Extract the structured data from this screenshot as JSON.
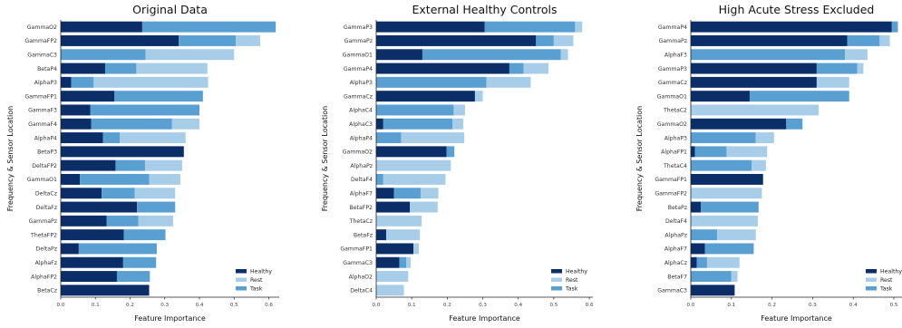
{
  "colors": {
    "Healthy": "#0b2e68",
    "Rest": "#a8cde8",
    "Task": "#5a9fd2"
  },
  "chart_data": [
    {
      "type": "bar",
      "orientation": "horizontal",
      "stacked": true,
      "title": "Original Data",
      "xlabel": "Feature Importance",
      "ylabel": "Frequency & Sensor Location",
      "xlim": [
        0,
        0.63
      ],
      "xticks": [
        "0.0",
        "0.1",
        "0.2",
        "0.3",
        "0.4",
        "0.5",
        "0.6"
      ],
      "xtick_values": [
        0,
        0.1,
        0.2,
        0.3,
        0.4,
        0.5,
        0.6
      ],
      "legend": {
        "entries": [
          "Healthy",
          "Rest",
          "Task"
        ],
        "placement": "lower-right"
      },
      "categories": [
        "GammaO2",
        "GammaFP2",
        "GammaC3",
        "BetaP4",
        "AlphaP3",
        "GammaFP1",
        "GammaF3",
        "GammaF4",
        "AlphaP4",
        "BetaP3",
        "DeltaFP2",
        "GammaO1",
        "DeltaCz",
        "DeltaFz",
        "GammaPz",
        "ThetaFP2",
        "DeltaPz",
        "AlphaFz",
        "AlphaFP2",
        "BetaCz"
      ],
      "segments": [
        [
          [
            "Healthy",
            0.235
          ],
          [
            "Task",
            0.385
          ]
        ],
        [
          [
            "Healthy",
            0.34
          ],
          [
            "Task",
            0.165
          ],
          [
            "Rest",
            0.07
          ]
        ],
        [
          [
            "Task",
            0.245
          ],
          [
            "Rest",
            0.255
          ]
        ],
        [
          [
            "Healthy",
            0.128
          ],
          [
            "Task",
            0.09
          ],
          [
            "Rest",
            0.205
          ]
        ],
        [
          [
            "Healthy",
            0.03
          ],
          [
            "Task",
            0.065
          ],
          [
            "Rest",
            0.33
          ]
        ],
        [
          [
            "Healthy",
            0.155
          ],
          [
            "Task",
            0.255
          ]
        ],
        [
          [
            "Healthy",
            0.085
          ],
          [
            "Task",
            0.315
          ]
        ],
        [
          [
            "Healthy",
            0.088
          ],
          [
            "Task",
            0.233
          ],
          [
            "Rest",
            0.079
          ]
        ],
        [
          [
            "Healthy",
            0.122
          ],
          [
            "Task",
            0.048
          ],
          [
            "Rest",
            0.19
          ]
        ],
        [
          [
            "Healthy",
            0.355
          ]
        ],
        [
          [
            "Healthy",
            0.158
          ],
          [
            "Task",
            0.085
          ],
          [
            "Rest",
            0.107
          ]
        ],
        [
          [
            "Healthy",
            0.055
          ],
          [
            "Task",
            0.2
          ],
          [
            "Rest",
            0.09
          ]
        ],
        [
          [
            "Healthy",
            0.118
          ],
          [
            "Task",
            0.095
          ],
          [
            "Rest",
            0.117
          ]
        ],
        [
          [
            "Healthy",
            0.22
          ],
          [
            "Task",
            0.11
          ]
        ],
        [
          [
            "Healthy",
            0.132
          ],
          [
            "Task",
            0.092
          ],
          [
            "Rest",
            0.1
          ]
        ],
        [
          [
            "Healthy",
            0.182
          ],
          [
            "Task",
            0.12
          ]
        ],
        [
          [
            "Healthy",
            0.052
          ],
          [
            "Task",
            0.225
          ]
        ],
        [
          [
            "Healthy",
            0.18
          ],
          [
            "Task",
            0.095
          ]
        ],
        [
          [
            "Healthy",
            0.162
          ],
          [
            "Task",
            0.095
          ]
        ],
        [
          [
            "Healthy",
            0.255
          ]
        ]
      ]
    },
    {
      "type": "bar",
      "orientation": "horizontal",
      "stacked": true,
      "title": "External Healthy Controls",
      "xlabel": "Feature Importance",
      "ylabel": "Frequency & Sensor Location",
      "xlim": [
        0,
        0.61
      ],
      "xticks": [
        "0.0",
        "0.1",
        "0.2",
        "0.3",
        "0.4",
        "0.5",
        "0.6"
      ],
      "xtick_values": [
        0,
        0.1,
        0.2,
        0.3,
        0.4,
        0.5,
        0.6
      ],
      "legend": {
        "entries": [
          "Healthy",
          "Rest",
          "Task"
        ],
        "placement": "lower-right"
      },
      "categories": [
        "GammaP3",
        "GammaPz",
        "GammaO1",
        "GammaP4",
        "AlphaP3",
        "GammaCz",
        "AlphaC4",
        "AlphaC3",
        "AlphaP4",
        "GammaO2",
        "AlphaPz",
        "DeltaF4",
        "AlphaF7",
        "BetaFP2",
        "ThetaCz",
        "BetaFz",
        "GammaFP1",
        "GammaC3",
        "AlphaO2",
        "DeltaC4"
      ],
      "segments": [
        [
          [
            "Healthy",
            0.305
          ],
          [
            "Task",
            0.255
          ],
          [
            "Rest",
            0.02
          ]
        ],
        [
          [
            "Healthy",
            0.45
          ],
          [
            "Task",
            0.05
          ],
          [
            "Rest",
            0.055
          ]
        ],
        [
          [
            "Healthy",
            0.13
          ],
          [
            "Task",
            0.39
          ],
          [
            "Rest",
            0.02
          ]
        ],
        [
          [
            "Healthy",
            0.375
          ],
          [
            "Task",
            0.04
          ],
          [
            "Rest",
            0.07
          ]
        ],
        [
          [
            "Task",
            0.31
          ],
          [
            "Rest",
            0.125
          ]
        ],
        [
          [
            "Healthy",
            0.278
          ],
          [
            "Rest",
            0.022
          ]
        ],
        [
          [
            "Task",
            0.218
          ],
          [
            "Rest",
            0.032
          ]
        ],
        [
          [
            "Healthy",
            0.02
          ],
          [
            "Task",
            0.195
          ],
          [
            "Rest",
            0.03
          ]
        ],
        [
          [
            "Task",
            0.07
          ],
          [
            "Rest",
            0.178
          ]
        ],
        [
          [
            "Healthy",
            0.198
          ],
          [
            "Task",
            0.022
          ]
        ],
        [
          [
            "Rest",
            0.21
          ]
        ],
        [
          [
            "Task",
            0.02
          ],
          [
            "Rest",
            0.175
          ]
        ],
        [
          [
            "Healthy",
            0.05
          ],
          [
            "Task",
            0.075
          ],
          [
            "Rest",
            0.05
          ]
        ],
        [
          [
            "Healthy",
            0.095
          ],
          [
            "Rest",
            0.078
          ]
        ],
        [
          [
            "Rest",
            0.128
          ]
        ],
        [
          [
            "Healthy",
            0.028
          ],
          [
            "Rest",
            0.095
          ]
        ],
        [
          [
            "Healthy",
            0.105
          ],
          [
            "Rest",
            0.015
          ]
        ],
        [
          [
            "Healthy",
            0.065
          ],
          [
            "Task",
            0.02
          ],
          [
            "Rest",
            0.012
          ]
        ],
        [
          [
            "Rest",
            0.09
          ]
        ],
        [
          [
            "Rest",
            0.078
          ]
        ]
      ]
    },
    {
      "type": "bar",
      "orientation": "horizontal",
      "stacked": true,
      "title": "High Acute Stress Excluded",
      "xlabel": "Feature Importance",
      "ylabel": "Frequency & Sensor Location",
      "xlim": [
        0,
        0.52
      ],
      "xticks": [
        "0.0",
        "0.1",
        "0.2",
        "0.3",
        "0.4",
        "0.5"
      ],
      "xtick_values": [
        0,
        0.1,
        0.2,
        0.3,
        0.4,
        0.5
      ],
      "legend": {
        "entries": [
          "Healthy",
          "Rest",
          "Task"
        ],
        "placement": "lower-right"
      },
      "categories": [
        "GammaP4",
        "GammaPz",
        "AlphaF3",
        "GammaP3",
        "GammaCz",
        "GammaO1",
        "ThetaC2",
        "GammaO2",
        "AlphaP3",
        "AlphaFP1",
        "ThetaC4",
        "GammaFP1",
        "GammaFP2",
        "BetaPz",
        "DeltaF4",
        "AlphaPz",
        "AlphaF7",
        "AlphaCz",
        "BetaF7",
        "GammaC3"
      ],
      "segments": [
        [
          [
            "Healthy",
            0.495
          ],
          [
            "Task",
            0.015
          ]
        ],
        [
          [
            "Healthy",
            0.385
          ],
          [
            "Task",
            0.08
          ],
          [
            "Rest",
            0.025
          ]
        ],
        [
          [
            "Task",
            0.38
          ],
          [
            "Rest",
            0.055
          ]
        ],
        [
          [
            "Healthy",
            0.31
          ],
          [
            "Task",
            0.1
          ],
          [
            "Rest",
            0.015
          ]
        ],
        [
          [
            "Healthy",
            0.31
          ],
          [
            "Rest",
            0.08
          ]
        ],
        [
          [
            "Healthy",
            0.145
          ],
          [
            "Task",
            0.245
          ]
        ],
        [
          [
            "Rest",
            0.315
          ]
        ],
        [
          [
            "Healthy",
            0.235
          ],
          [
            "Task",
            0.04
          ]
        ],
        [
          [
            "Task",
            0.16
          ],
          [
            "Rest",
            0.045
          ]
        ],
        [
          [
            "Healthy",
            0.01
          ],
          [
            "Task",
            0.078
          ],
          [
            "Rest",
            0.1
          ]
        ],
        [
          [
            "Task",
            0.15
          ],
          [
            "Rest",
            0.035
          ]
        ],
        [
          [
            "Healthy",
            0.178
          ]
        ],
        [
          [
            "Rest",
            0.175
          ]
        ],
        [
          [
            "Healthy",
            0.025
          ],
          [
            "Task",
            0.142
          ]
        ],
        [
          [
            "Rest",
            0.165
          ]
        ],
        [
          [
            "Task",
            0.065
          ],
          [
            "Rest",
            0.095
          ]
        ],
        [
          [
            "Healthy",
            0.035
          ],
          [
            "Task",
            0.12
          ]
        ],
        [
          [
            "Healthy",
            0.015
          ],
          [
            "Task",
            0.025
          ],
          [
            "Rest",
            0.08
          ]
        ],
        [
          [
            "Task",
            0.1
          ],
          [
            "Rest",
            0.015
          ]
        ],
        [
          [
            "Healthy",
            0.108
          ]
        ]
      ]
    }
  ]
}
